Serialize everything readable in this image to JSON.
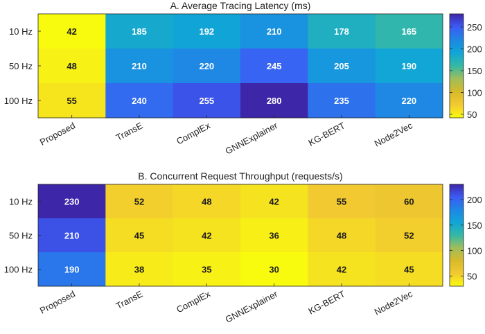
{
  "chart_data": [
    {
      "type": "heatmap",
      "title": "A. Average Tracing Latency (ms)",
      "rows": [
        "10 Hz",
        "50 Hz",
        "100 Hz"
      ],
      "columns": [
        "Proposed",
        "TransE",
        "ComplEx",
        "GNNExplainer",
        "KG-BERT",
        "Node2Vec"
      ],
      "values": [
        [
          42,
          185,
          192,
          210,
          178,
          165
        ],
        [
          48,
          210,
          220,
          245,
          205,
          190
        ],
        [
          55,
          240,
          255,
          280,
          235,
          220
        ]
      ],
      "colorbar": {
        "min": 42,
        "max": 280,
        "ticks": [
          50,
          100,
          150,
          200,
          250
        ]
      },
      "colormap": "parula"
    },
    {
      "type": "heatmap",
      "title": "B. Concurrent Request Throughput (requests/s)",
      "rows": [
        "10 Hz",
        "50 Hz",
        "100 Hz"
      ],
      "columns": [
        "Proposed",
        "TransE",
        "ComplEx",
        "GNNExplainer",
        "KG-BERT",
        "Node2Vec"
      ],
      "values": [
        [
          230,
          52,
          48,
          42,
          55,
          60
        ],
        [
          210,
          45,
          42,
          36,
          48,
          52
        ],
        [
          190,
          38,
          35,
          30,
          42,
          45
        ]
      ],
      "colorbar": {
        "min": 30,
        "max": 230,
        "ticks": [
          50,
          100,
          150,
          200
        ]
      },
      "colormap": "parula"
    }
  ]
}
